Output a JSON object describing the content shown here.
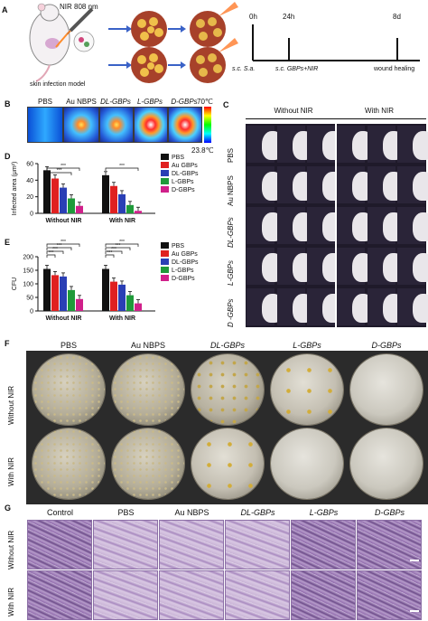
{
  "panels": {
    "A": "A",
    "B": "B",
    "C": "C",
    "D": "D",
    "E": "E",
    "F": "F",
    "G": "G"
  },
  "panelA": {
    "nir_label": "NIR 808 nm",
    "model_label": "skin infection model",
    "timeline": {
      "t0": "0h",
      "t1": "24h",
      "t2": "8d",
      "e0": "s.c. S.a.",
      "e1": "s.c. GBPs+NIR",
      "e2": "wound healing"
    }
  },
  "panelB": {
    "headers": [
      "PBS",
      "Au NBPS",
      "DL-GBPs",
      "L-GBPs",
      "D-GBPs"
    ],
    "temp_max": "70℃",
    "temp_min": "23.8℃"
  },
  "panelC": {
    "col_headers": [
      "Without NIR",
      "With NIR"
    ],
    "row_labels": [
      "PBS",
      "Au NBPS",
      "DL-GBPs",
      "L-GBPs",
      "D -GBPs"
    ]
  },
  "chart_data": [
    {
      "type": "bar",
      "panel": "D",
      "ylabel": "Infected area (μm²)",
      "ylim": [
        0,
        60
      ],
      "yticks": [
        "0",
        "20",
        "40",
        "60"
      ],
      "categories": [
        "Without NIR",
        "With NIR"
      ],
      "series": [
        {
          "name": "PBS",
          "color": "#111111",
          "values": [
            52,
            46
          ]
        },
        {
          "name": "Au GBPs",
          "color": "#e02020",
          "values": [
            42,
            33
          ]
        },
        {
          "name": "DL-GBPs",
          "color": "#2a3fb5",
          "values": [
            31,
            23
          ]
        },
        {
          "name": "L-GBPs",
          "color": "#1f9a3a",
          "values": [
            18,
            10
          ]
        },
        {
          "name": "D-GBPs",
          "color": "#d0208a",
          "values": [
            9,
            3
          ]
        }
      ],
      "significance": [
        "***",
        "***",
        "***"
      ]
    },
    {
      "type": "bar",
      "panel": "E",
      "ylabel": "CFU",
      "ylim": [
        0,
        200
      ],
      "yticks": [
        "0",
        "50",
        "100",
        "150",
        "200"
      ],
      "categories": [
        "Without NIR",
        "With NIR"
      ],
      "series": [
        {
          "name": "PBS",
          "color": "#111111",
          "values": [
            155,
            155
          ]
        },
        {
          "name": "Au GBPs",
          "color": "#e02020",
          "values": [
            132,
            108
          ]
        },
        {
          "name": "DL-GBPs",
          "color": "#2a3fb5",
          "values": [
            127,
            97
          ]
        },
        {
          "name": "L-GBPs",
          "color": "#1f9a3a",
          "values": [
            77,
            58
          ]
        },
        {
          "name": "D-GBPs",
          "color": "#d0208a",
          "values": [
            44,
            28
          ]
        }
      ],
      "significance": [
        "***",
        "***",
        "***",
        "***",
        "***",
        "***",
        "***",
        "***"
      ]
    }
  ],
  "panelF": {
    "col_headers": [
      "PBS",
      "Au NBPS",
      "DL-GBPs",
      "L-GBPs",
      "D-GBPs"
    ],
    "row_labels": [
      "Without NIR",
      "With NIR"
    ]
  },
  "panelG": {
    "col_headers": [
      "Control",
      "PBS",
      "Au NBPS",
      "DL-GBPs",
      "L-GBPs",
      "D-GBPs"
    ],
    "row_labels": [
      "Without NIR",
      "With NIR"
    ]
  }
}
